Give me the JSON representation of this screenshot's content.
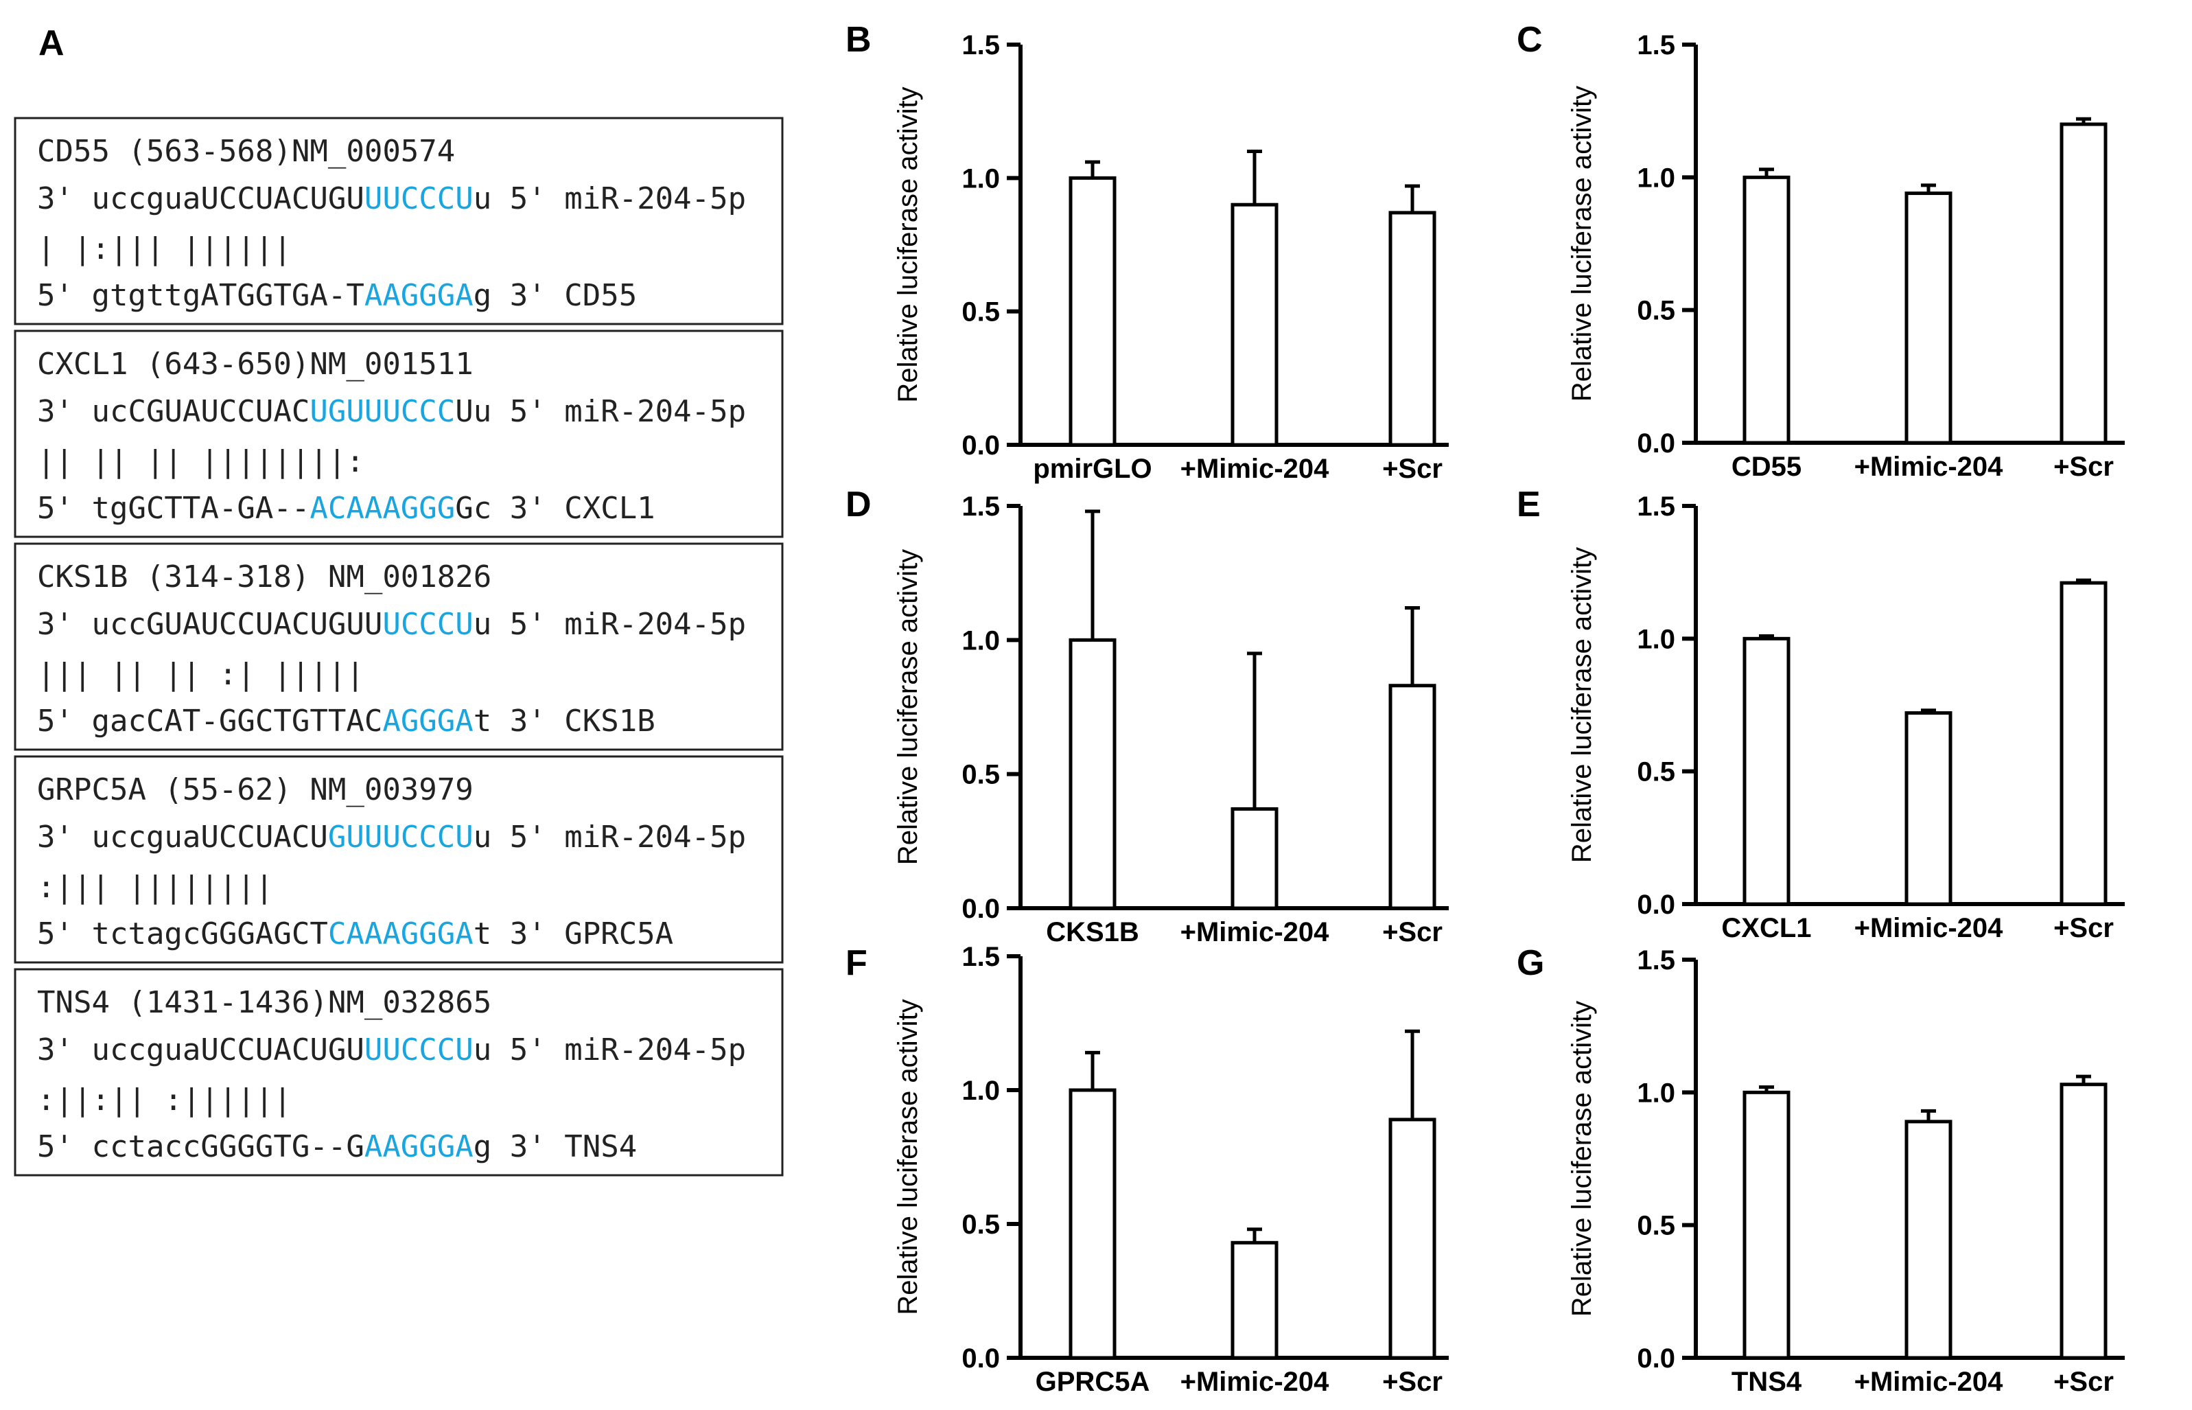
{
  "panel_a": {
    "letter": "A",
    "alignments": [
      {
        "header": "CD55 (563-568)NM_000574",
        "mirna_row": [
          [
            "3'  uccguaUCCUACUGU",
            0
          ],
          [
            "UUCCCU",
            1
          ],
          [
            "u  5'  miR-204-5p",
            0
          ]
        ],
        "pairing": "          | |:|||  ||||||",
        "target_row": [
          [
            "5'  gtgttgATGGTGA-T",
            0
          ],
          [
            "AAGGGA",
            1
          ],
          [
            "g  3'  CD55",
            0
          ]
        ]
      },
      {
        "header": "CXCL1 (643-650)NM_001511",
        "mirna_row": [
          [
            "3'  ucCGUAUCCUAC",
            0
          ],
          [
            "UGUUUCCC",
            1
          ],
          [
            "Uu  5'  miR-204-5p",
            0
          ]
        ],
        "pairing": "      || || ||  ||||||||:",
        "target_row": [
          [
            "5'  tgGCTTA-GA--",
            0
          ],
          [
            "ACAAAGGG",
            1
          ],
          [
            "Gc  3'  CXCL1",
            0
          ]
        ]
      },
      {
        "header": "CKS1B (314-318) NM_001826",
        "mirna_row": [
          [
            "3'  uccGUAUCCUACUGUU",
            0
          ],
          [
            "UCCCU",
            1
          ],
          [
            "u  5'  miR-204-5p",
            0
          ]
        ],
        "pairing": "       ||| || || :| |||||",
        "target_row": [
          [
            "5'  gacCAT-GGCTGTTAC",
            0
          ],
          [
            "AGGGA",
            1
          ],
          [
            "t  3'  CKS1B",
            0
          ]
        ]
      },
      {
        "header": "GRPC5A (55-62) NM_003979",
        "mirna_row": [
          [
            "3'  uccguaUCCUACU",
            0
          ],
          [
            "GUUUCCCU",
            1
          ],
          [
            "u  5'  miR-204-5p",
            0
          ]
        ],
        "pairing": "          :|||   ||||||||",
        "target_row": [
          [
            "5'  tctagcGGGAGCT",
            0
          ],
          [
            "CAAAGGGA",
            1
          ],
          [
            "t  3'  GPRC5A",
            0
          ]
        ]
      },
      {
        "header": "TNS4 (1431-1436)NM_032865",
        "mirna_row": [
          [
            "3'  uccguaUCCUACUGU",
            0
          ],
          [
            "UUCCCU",
            1
          ],
          [
            "u  5'  miR-204-5p",
            0
          ]
        ],
        "pairing": "          :||:||  :||||||",
        "target_row": [
          [
            "5'  cctaccGGGGTG--G",
            0
          ],
          [
            "AAGGGA",
            1
          ],
          [
            "g  3'  TNS4",
            0
          ]
        ]
      }
    ]
  },
  "chart_data": [
    {
      "panel": "B",
      "type": "bar",
      "ylabel": "Relative luciferase activity",
      "ylim": [
        0,
        1.5
      ],
      "yticks": [
        "0.0",
        "0.5",
        "1.0",
        "1.5"
      ],
      "categories": [
        "pmirGLO",
        "+Mimic-204",
        "+Scr"
      ],
      "values": [
        1.0,
        0.9,
        0.87
      ],
      "errors": [
        0.06,
        0.2,
        0.1
      ]
    },
    {
      "panel": "C",
      "type": "bar",
      "ylabel": "Relative luciferase activity",
      "ylim": [
        0,
        1.5
      ],
      "yticks": [
        "0.0",
        "0.5",
        "1.0",
        "1.5"
      ],
      "categories": [
        "CD55",
        "+Mimic-204",
        "+Scr"
      ],
      "values": [
        1.0,
        0.94,
        1.2
      ],
      "errors": [
        0.03,
        0.03,
        0.02
      ]
    },
    {
      "panel": "D",
      "type": "bar",
      "ylabel": "Relative luciferase activity",
      "ylim": [
        0,
        1.5
      ],
      "yticks": [
        "0.0",
        "0.5",
        "1.0",
        "1.5"
      ],
      "categories": [
        "CKS1B",
        "+Mimic-204",
        "+Scr"
      ],
      "values": [
        1.0,
        0.37,
        0.83
      ],
      "errors": [
        0.48,
        0.58,
        0.29
      ]
    },
    {
      "panel": "E",
      "type": "bar",
      "ylabel": "Relative luciferase activity",
      "ylim": [
        0,
        1.5
      ],
      "yticks": [
        "0.0",
        "0.5",
        "1.0",
        "1.5"
      ],
      "categories": [
        "CXCL1",
        "+Mimic-204",
        "+Scr"
      ],
      "values": [
        1.0,
        0.72,
        1.21
      ],
      "errors": [
        0.01,
        0.01,
        0.01
      ]
    },
    {
      "panel": "F",
      "type": "bar",
      "ylabel": "Relative luciferase activity",
      "ylim": [
        0,
        1.5
      ],
      "yticks": [
        "0.0",
        "0.5",
        "1.0",
        "1.5"
      ],
      "categories": [
        "GPRC5A",
        "+Mimic-204",
        "+Scr"
      ],
      "values": [
        1.0,
        0.43,
        0.89
      ],
      "errors": [
        0.14,
        0.05,
        0.33
      ]
    },
    {
      "panel": "G",
      "type": "bar",
      "ylabel": "Relative luciferase activity",
      "ylim": [
        0,
        1.5
      ],
      "yticks": [
        "0.0",
        "0.5",
        "1.0",
        "1.5"
      ],
      "categories": [
        "TNS4",
        "+Mimic-204",
        "+Scr"
      ],
      "values": [
        1.0,
        0.89,
        1.03
      ],
      "errors": [
        0.02,
        0.04,
        0.03
      ]
    }
  ]
}
